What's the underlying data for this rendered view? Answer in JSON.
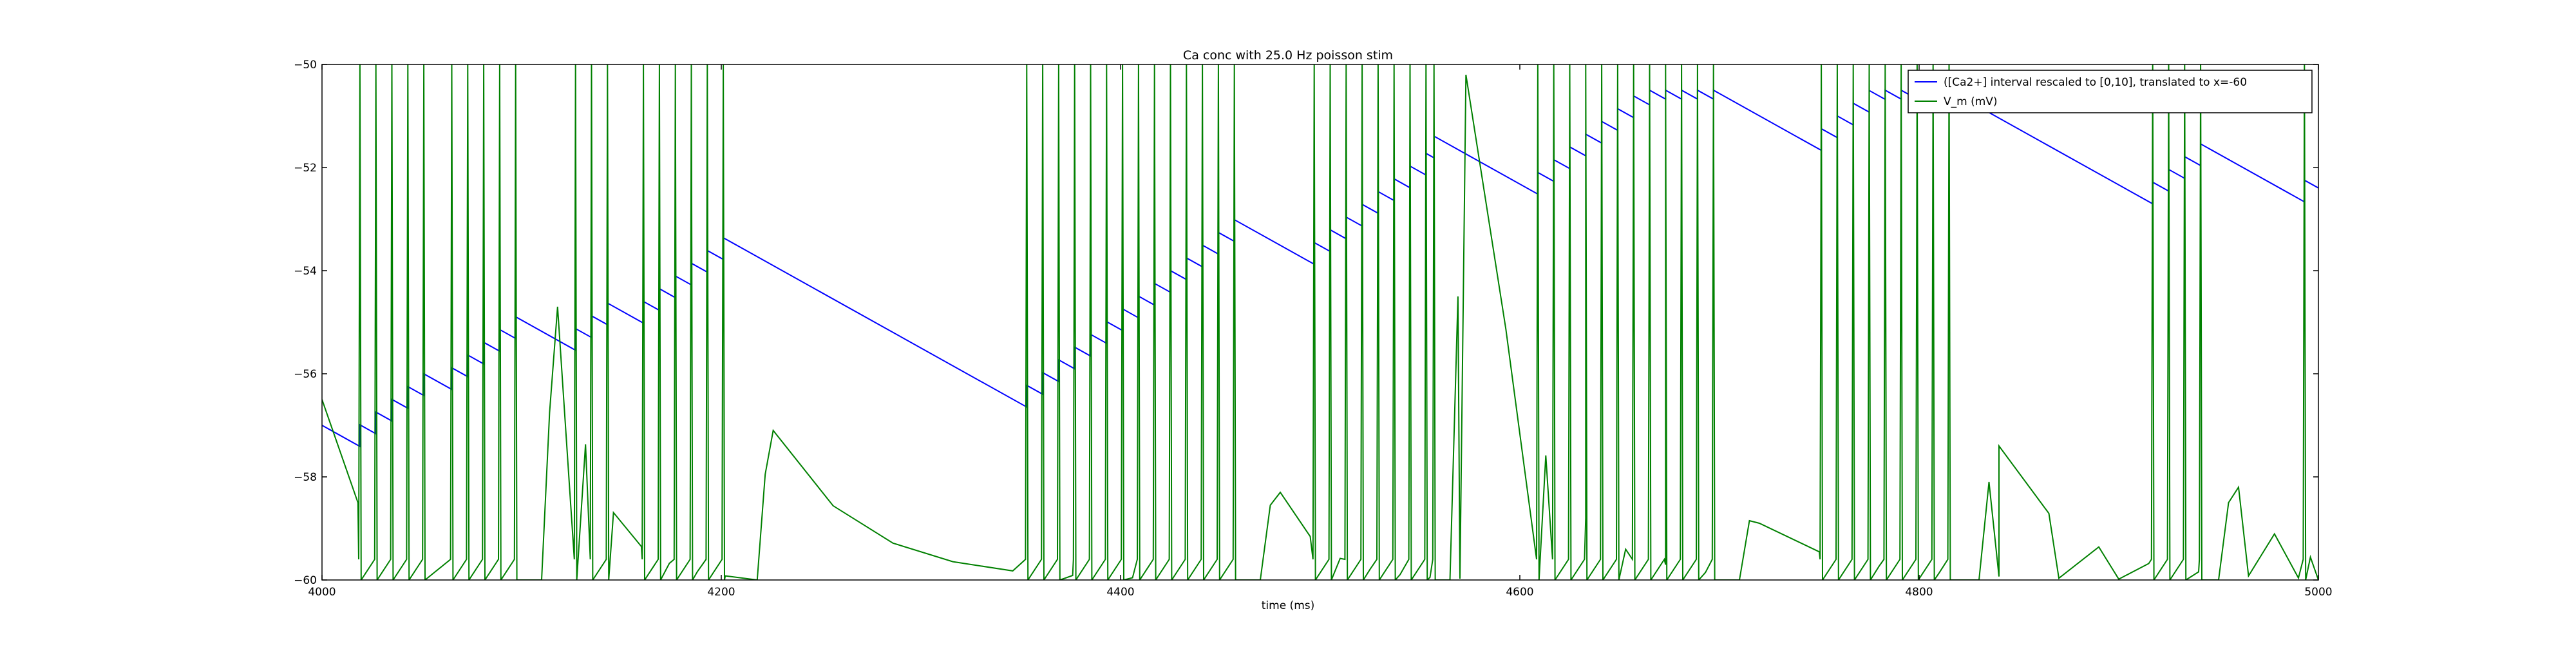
{
  "chart_data": {
    "type": "line",
    "title": "Ca conc with 25.0 Hz poisson stim",
    "xlabel": "time (ms)",
    "ylabel": "",
    "xlim": [
      4000,
      5000
    ],
    "ylim": [
      -60,
      -50
    ],
    "x_ticks": [
      4000,
      4200,
      4400,
      4600,
      4800,
      5000
    ],
    "x_tick_labels": [
      "4000",
      "4200",
      "4400",
      "4600",
      "4800",
      "5000"
    ],
    "y_ticks": [
      -60,
      -58,
      -56,
      -54,
      -52,
      -50
    ],
    "y_tick_labels": [
      "−60",
      "−58",
      "−56",
      "−54",
      "−52",
      "−50"
    ],
    "grid": false,
    "legend_position": "top-right",
    "series": [
      {
        "name": "([Ca2+] interval rescaled to [0,10], translated to x=-60",
        "color": "#0000ff",
        "style": "sawtooth",
        "start": [
          4000,
          -57.0
        ],
        "decay_slope": -0.0216,
        "spike_times": [
          4019,
          4027,
          4035,
          4043,
          4051,
          4065,
          4073,
          4081,
          4089,
          4097,
          4127,
          4135,
          4143,
          4161,
          4169,
          4177,
          4185,
          4193,
          4201,
          4353,
          4361,
          4369,
          4377,
          4385,
          4393,
          4401,
          4409,
          4417,
          4425,
          4433,
          4441,
          4449,
          4457,
          4497,
          4505,
          4513,
          4521,
          4529,
          4537,
          4545,
          4553,
          4557,
          4609,
          4617,
          4625,
          4633,
          4641,
          4649,
          4657,
          4665,
          4673,
          4681,
          4689,
          4697,
          4751,
          4759,
          4767,
          4775,
          4783,
          4791,
          4799,
          4807,
          4815,
          4917,
          4925,
          4933,
          4941,
          4993
        ],
        "increment": 0.42,
        "max_level": -50.5,
        "end": 5000
      },
      {
        "name": "V_m (mV)",
        "color": "#008000",
        "style": "spike-train",
        "rest": -60,
        "reset": -60,
        "spike_times": [
          4019,
          4027,
          4035,
          4043,
          4051,
          4065,
          4073,
          4081,
          4089,
          4097,
          4127,
          4135,
          4143,
          4161,
          4169,
          4177,
          4185,
          4193,
          4201,
          4353,
          4361,
          4369,
          4377,
          4385,
          4393,
          4401,
          4409,
          4417,
          4425,
          4433,
          4441,
          4449,
          4457,
          4497,
          4505,
          4513,
          4521,
          4529,
          4537,
          4545,
          4553,
          4557,
          4609,
          4617,
          4625,
          4633,
          4641,
          4649,
          4657,
          4665,
          4673,
          4681,
          4689,
          4697,
          4751,
          4759,
          4767,
          4775,
          4783,
          4791,
          4799,
          4807,
          4815,
          4917,
          4925,
          4933,
          4941,
          4993
        ],
        "bumps": [
          {
            "t": 4110,
            "peak": -54.7,
            "rise": 8,
            "decay": 14
          },
          {
            "t": 4218,
            "peak": -57.1,
            "rise": 8,
            "decay": 30
          },
          {
            "t": 4470,
            "peak": -58.3,
            "rise": 10,
            "decay": 15
          },
          {
            "t": 4565,
            "peak": -50.2,
            "rise": 8,
            "decay": 20
          },
          {
            "t": 4710,
            "peak": -58.9,
            "rise": 10,
            "decay": 30
          },
          {
            "t": 4830,
            "peak": -57.4,
            "rise": 10,
            "decay": 25
          },
          {
            "t": 4950,
            "peak": -58.2,
            "rise": 10,
            "decay": 18
          }
        ],
        "pre_spike_valleys": [
          {
            "t": 4018,
            "level": -58.5
          },
          {
            "t": 4126,
            "level": -56.5
          },
          {
            "t": 4450,
            "level": -53.4
          }
        ]
      }
    ]
  }
}
